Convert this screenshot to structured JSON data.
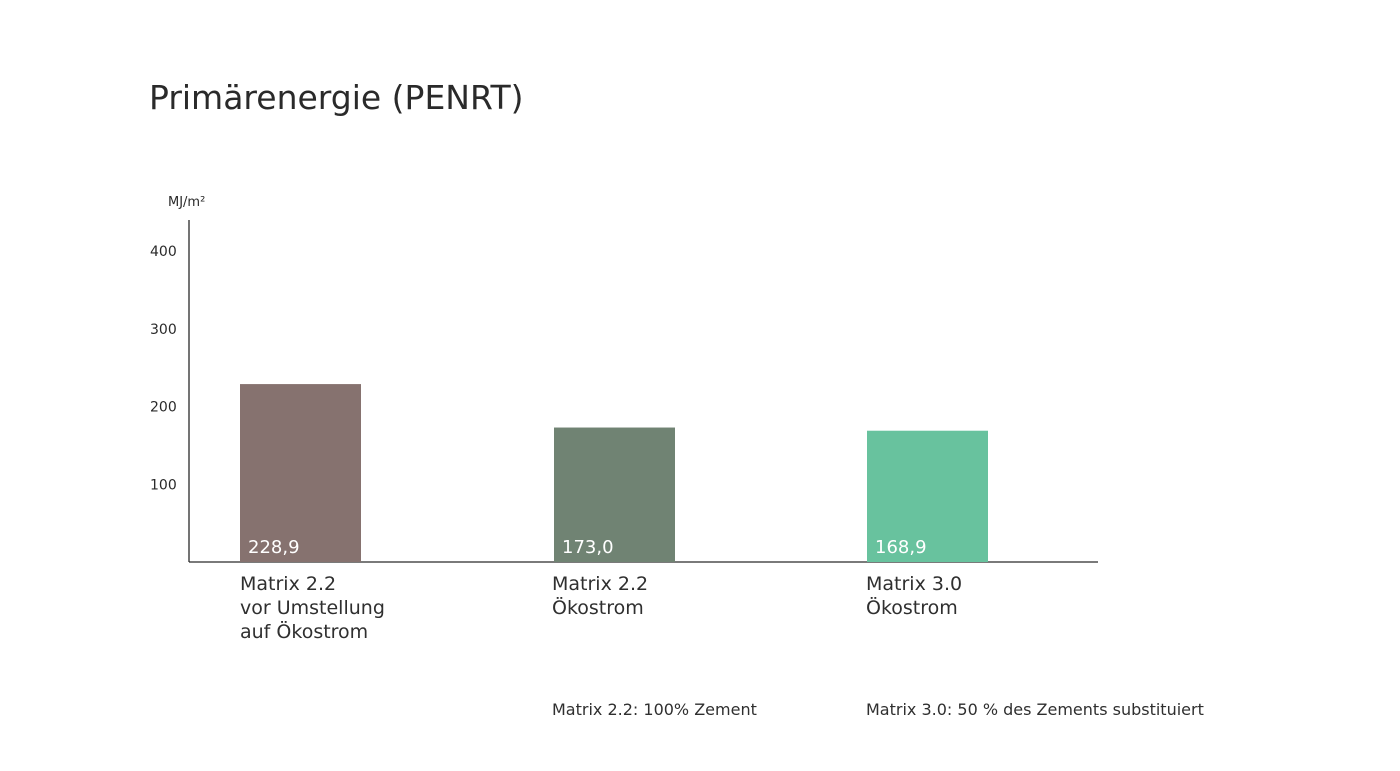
{
  "chart_data": {
    "type": "bar",
    "title": "Primärenergie (PENRT)",
    "ylabel": "MJ/m²",
    "ylim": [
      0,
      440
    ],
    "yticks": [
      100,
      200,
      300,
      400
    ],
    "categories": [
      "Matrix 2.2\nvor Umstellung\nauf Ökostrom",
      "Matrix 2.2\nÖkostrom",
      "Matrix 3.0\nÖkostrom"
    ],
    "values": [
      228.9,
      173.0,
      168.9
    ],
    "value_labels": [
      "228,9",
      "173,0",
      "168,9"
    ],
    "colors": [
      "#86726f",
      "#708373",
      "#68c29e"
    ],
    "grid": false,
    "legend": "none"
  },
  "footnotes": [
    "Matrix 2.2: 100% Zement",
    "Matrix 3.0: 50 % des Zements substituiert"
  ]
}
